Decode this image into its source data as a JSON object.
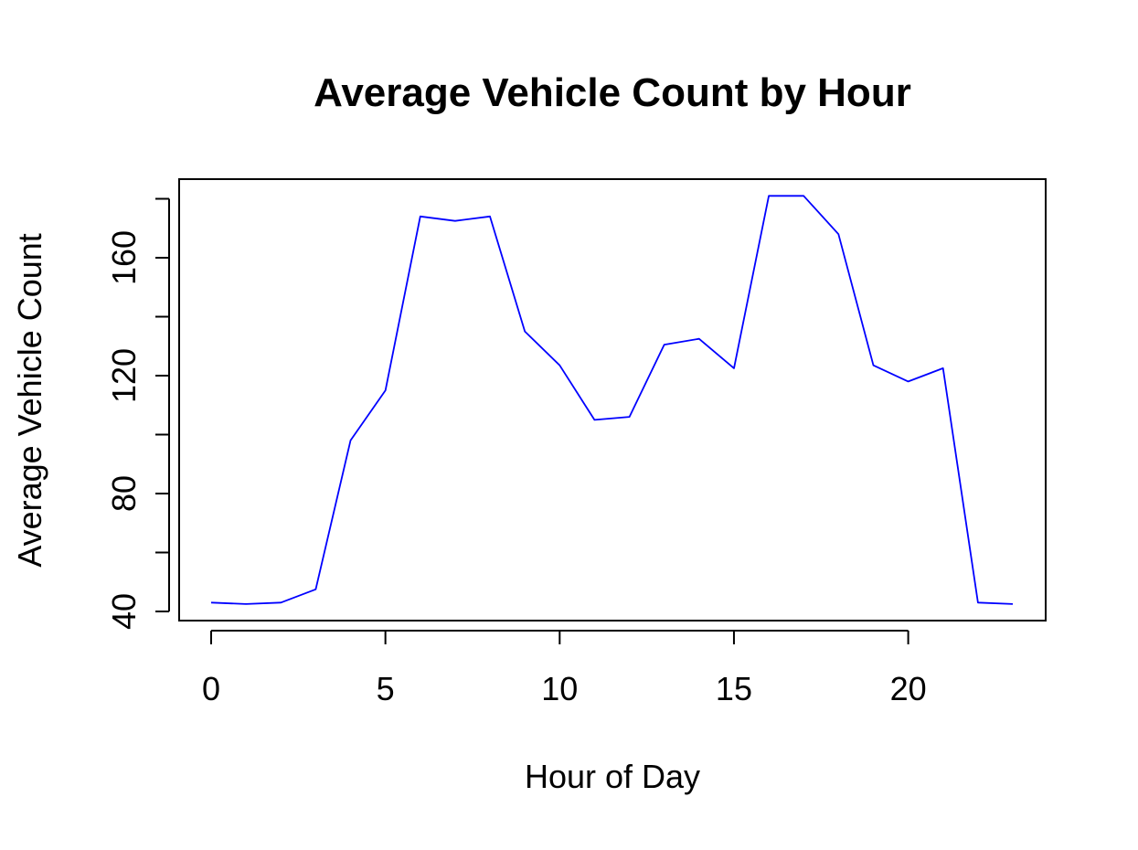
{
  "chart_data": {
    "type": "line",
    "title": "Average Vehicle Count by Hour",
    "xlabel": "Hour of Day",
    "ylabel": "Average Vehicle Count",
    "xlim": [
      0,
      23
    ],
    "ylim": [
      40,
      180
    ],
    "x_ticks": [
      0,
      5,
      10,
      15,
      20
    ],
    "y_ticks": [
      40,
      80,
      120,
      160
    ],
    "y_minor_ticks": [
      40,
      60,
      80,
      100,
      120,
      140,
      160,
      180
    ],
    "grid": false,
    "legend": "none",
    "series": [
      {
        "color": "#0000ff",
        "x": [
          0,
          1,
          2,
          3,
          4,
          5,
          6,
          7,
          8,
          9,
          10,
          11,
          12,
          13,
          14,
          15,
          16,
          17,
          18,
          19,
          20,
          21,
          22,
          23
        ],
        "values": [
          43,
          42.5,
          43,
          47.5,
          98,
          115,
          174,
          172.5,
          174,
          135,
          123.5,
          105,
          106,
          130.5,
          132.5,
          122.5,
          181,
          181,
          168,
          123.5,
          118,
          122.5,
          43,
          42.5
        ]
      }
    ]
  }
}
